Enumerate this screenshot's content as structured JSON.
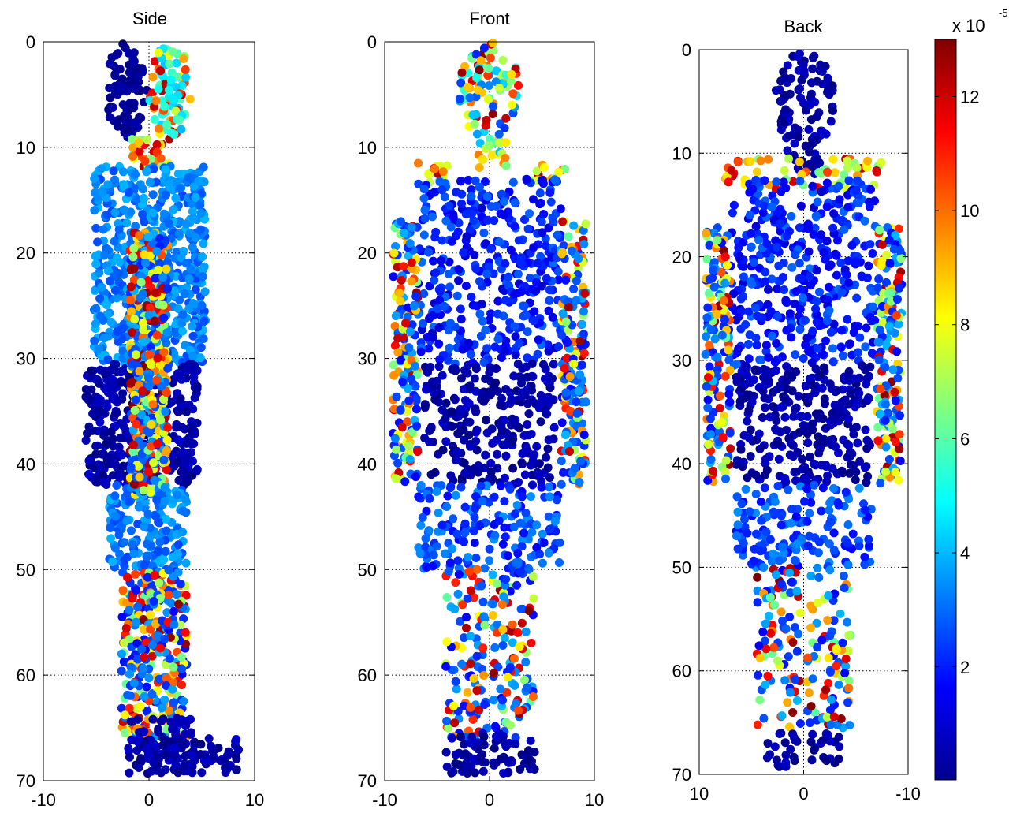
{
  "chart_data": [
    {
      "type": "scatter",
      "title": "Side",
      "xlim": [
        -10,
        10
      ],
      "ylim": [
        0,
        70
      ],
      "y_reversed": true,
      "xticks": [
        -10,
        0,
        10
      ],
      "yticks": [
        0,
        10,
        20,
        30,
        40,
        50,
        60,
        70
      ],
      "grid": true,
      "body_outline": [
        {
          "part": "head",
          "y": [
            0,
            9
          ],
          "x": [
            -4.2,
            4.0
          ]
        },
        {
          "part": "neck",
          "y": [
            9,
            12
          ],
          "x": [
            -1.5,
            2.0
          ]
        },
        {
          "part": "upper-torso",
          "y": [
            12,
            30
          ],
          "x": [
            -5.0,
            5.5
          ]
        },
        {
          "part": "hips",
          "y": [
            30,
            42
          ],
          "x": [
            -6.0,
            4.5
          ]
        },
        {
          "part": "thighs",
          "y": [
            42,
            50
          ],
          "x": [
            -3.5,
            3.5
          ]
        },
        {
          "part": "lower-legs",
          "y": [
            50,
            66
          ],
          "x": [
            -2.5,
            3.5
          ]
        },
        {
          "part": "feet",
          "y": [
            66,
            69.5
          ],
          "x": [
            -2.0,
            9.0
          ]
        }
      ],
      "color_pattern": [
        {
          "region": "head back half",
          "value_range": [
            0.1,
            0.6
          ]
        },
        {
          "region": "face / head front",
          "value_range": [
            5,
            12
          ]
        },
        {
          "region": "neck",
          "value_range": [
            6,
            12
          ]
        },
        {
          "region": "upper torso",
          "value_range": [
            2.5,
            4
          ]
        },
        {
          "region": "arm (central band)",
          "value_range": [
            6,
            13
          ]
        },
        {
          "region": "hips",
          "value_range": [
            0.1,
            1
          ]
        },
        {
          "region": "thighs",
          "value_range": [
            2.5,
            4
          ]
        },
        {
          "region": "lower legs",
          "value_range": [
            5,
            12
          ]
        },
        {
          "region": "feet",
          "value_range": [
            0.1,
            1
          ]
        }
      ]
    },
    {
      "type": "scatter",
      "title": "Front",
      "xlim": [
        -10,
        10
      ],
      "ylim": [
        0,
        70
      ],
      "y_reversed": true,
      "xticks": [
        -10,
        0,
        10
      ],
      "yticks": [
        0,
        10,
        20,
        30,
        40,
        50,
        60,
        70
      ],
      "grid": true,
      "color_pattern": [
        {
          "region": "head",
          "value_range": [
            5,
            12
          ]
        },
        {
          "region": "shoulders",
          "value_range": [
            6,
            11
          ]
        },
        {
          "region": "torso",
          "value_range": [
            1,
            3
          ]
        },
        {
          "region": "arms",
          "value_range": [
            6,
            13
          ]
        },
        {
          "region": "hips",
          "value_range": [
            0.1,
            1
          ]
        },
        {
          "region": "thighs",
          "value_range": [
            1.5,
            3.5
          ]
        },
        {
          "region": "lower legs",
          "value_range": [
            6,
            13
          ]
        },
        {
          "region": "feet",
          "value_range": [
            0.1,
            1
          ]
        }
      ]
    },
    {
      "type": "scatter",
      "title": "Back",
      "xlim": [
        10,
        -10
      ],
      "ylim": [
        0,
        70
      ],
      "y_reversed": true,
      "xticks": [
        10,
        0,
        -10
      ],
      "yticks": [
        0,
        10,
        20,
        30,
        40,
        50,
        60,
        70
      ],
      "grid": true,
      "color_pattern": [
        {
          "region": "head",
          "value_range": [
            0.1,
            1
          ]
        },
        {
          "region": "shoulders",
          "value_range": [
            6,
            11
          ]
        },
        {
          "region": "upper back",
          "value_range": [
            1,
            3
          ]
        },
        {
          "region": "arms",
          "value_range": [
            6,
            13
          ]
        },
        {
          "region": "lower back / hips",
          "value_range": [
            0.1,
            1
          ]
        },
        {
          "region": "thighs",
          "value_range": [
            1.5,
            3.5
          ]
        },
        {
          "region": "lower legs",
          "value_range": [
            6,
            13
          ]
        },
        {
          "region": "feet",
          "value_range": [
            0.1,
            1
          ]
        }
      ]
    }
  ],
  "colorbar": {
    "colormap": "jet",
    "range": [
      0.02,
      13
    ],
    "ticks": [
      2,
      4,
      6,
      8,
      10,
      12
    ],
    "multiplier": "x 10",
    "exponent": "-5"
  }
}
